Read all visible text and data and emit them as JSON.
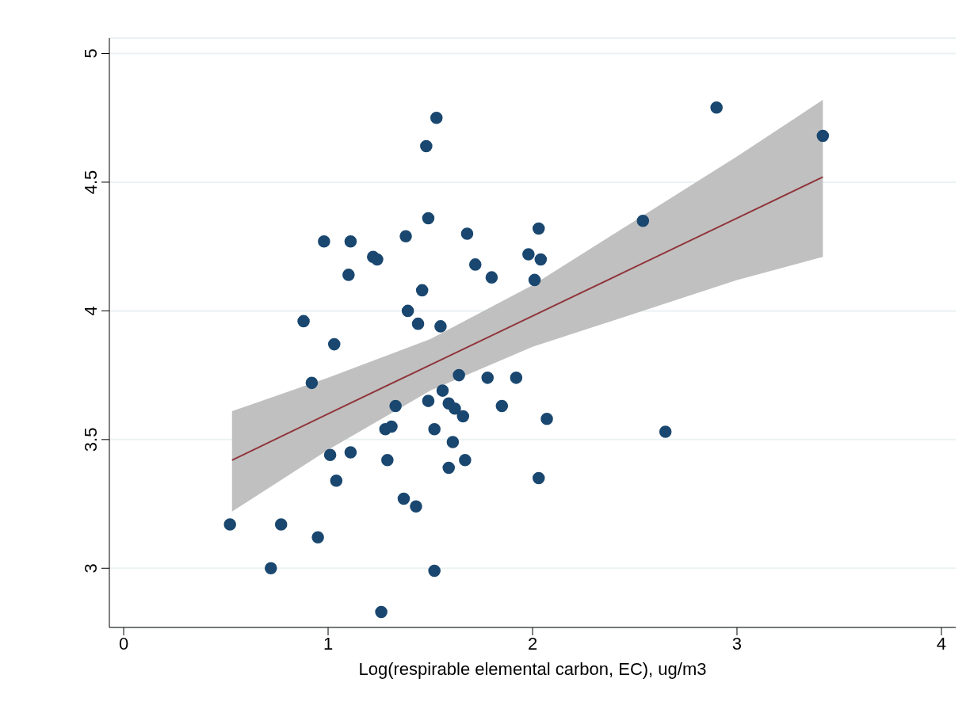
{
  "chart_data": {
    "type": "scatter",
    "xlabel": "Log(respirable elemental carbon, EC), ug/m3",
    "xlim": [
      -0.07,
      4.07
    ],
    "xticks": [
      0,
      1,
      2,
      3,
      4
    ],
    "ylim": [
      2.77,
      5.06
    ],
    "yticks": [
      3,
      3.5,
      4,
      4.5,
      5
    ],
    "grid": "y",
    "marker": "circle",
    "series": [
      {
        "color": "#1a476f",
        "x": [
          0.52,
          0.72,
          0.77,
          0.88,
          0.92,
          0.95,
          0.98,
          1.01,
          1.03,
          1.04,
          1.1,
          1.11,
          1.11,
          1.22,
          1.24,
          1.26,
          1.28,
          1.29,
          1.31,
          1.33,
          1.37,
          1.38,
          1.39,
          1.43,
          1.44,
          1.46,
          1.48,
          1.49,
          1.49,
          1.52,
          1.52,
          1.53,
          1.55,
          1.56,
          1.59,
          1.59,
          1.61,
          1.62,
          1.64,
          1.66,
          1.67,
          1.68,
          1.72,
          1.78,
          1.8,
          1.85,
          1.92,
          1.98,
          2.01,
          2.03,
          2.03,
          2.04,
          2.07,
          2.54,
          2.65,
          2.9,
          3.42
        ],
        "values": [
          3.17,
          3.0,
          3.17,
          3.96,
          3.72,
          3.12,
          4.27,
          3.44,
          3.87,
          3.34,
          4.14,
          3.45,
          4.27,
          4.21,
          4.2,
          2.83,
          3.54,
          3.42,
          3.55,
          3.63,
          3.27,
          4.29,
          4.0,
          3.24,
          3.95,
          4.08,
          4.64,
          3.65,
          4.36,
          3.54,
          2.99,
          4.75,
          3.94,
          3.69,
          3.64,
          3.39,
          3.49,
          3.62,
          3.75,
          3.59,
          3.42,
          4.3,
          4.18,
          3.74,
          4.13,
          3.63,
          3.74,
          4.22,
          4.12,
          3.35,
          4.32,
          4.2,
          3.58,
          4.35,
          3.53,
          4.79,
          4.68
        ]
      },
      {
        "type": "line",
        "marker": "none",
        "color": "#90353b",
        "x": [
          0.53,
          1.0,
          1.5,
          2.0,
          2.5,
          3.0,
          3.42
        ],
        "values": [
          3.42,
          3.6,
          3.79,
          3.98,
          4.17,
          4.36,
          4.52
        ],
        "lower": [
          3.22,
          3.46,
          3.69,
          3.86,
          3.99,
          4.12,
          4.21
        ],
        "upper": [
          3.61,
          3.74,
          3.89,
          4.1,
          4.35,
          4.6,
          4.82
        ]
      }
    ]
  }
}
